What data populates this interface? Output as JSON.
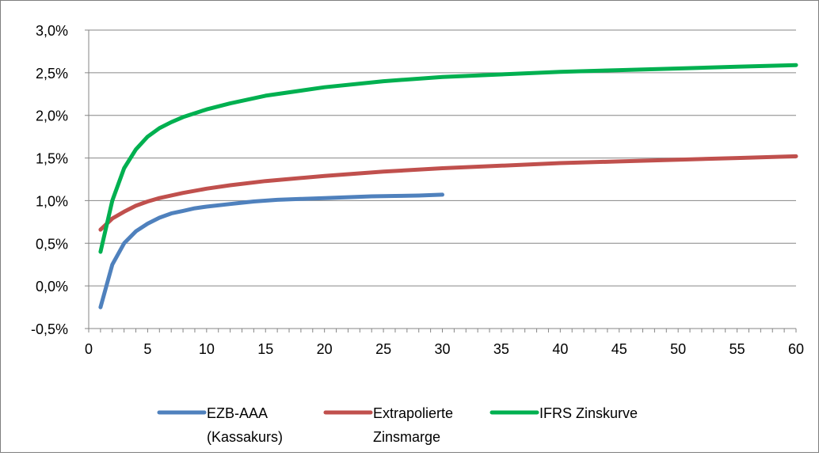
{
  "chart_data": {
    "type": "line",
    "title": "",
    "xlabel": "",
    "ylabel": "",
    "xlim": [
      0,
      60
    ],
    "ylim": [
      -0.5,
      3.0
    ],
    "x_ticks": [
      0,
      5,
      10,
      15,
      20,
      25,
      30,
      35,
      40,
      45,
      50,
      55,
      60
    ],
    "x_tick_labels": [
      "0",
      "5",
      "10",
      "15",
      "20",
      "25",
      "30",
      "35",
      "40",
      "45",
      "50",
      "55",
      "60"
    ],
    "y_ticks": [
      -0.5,
      0.0,
      0.5,
      1.0,
      1.5,
      2.0,
      2.5,
      3.0
    ],
    "y_tick_labels": [
      "-0,5%",
      "0,0%",
      "0,5%",
      "1,0%",
      "1,5%",
      "2,0%",
      "2,5%",
      "3,0%"
    ],
    "grid": "horizontal",
    "x_minor_ticks": true,
    "legend": "bottom",
    "series": [
      {
        "name": "EZB-AAA (Kassakurs)",
        "legend_lines": [
          "EZB-AAA",
          "(Kassakurs)"
        ],
        "color": "#4f81bd",
        "x": [
          1,
          2,
          3,
          4,
          5,
          6,
          7,
          8,
          9,
          10,
          12,
          14,
          16,
          18,
          20,
          22,
          24,
          26,
          28,
          30
        ],
        "y": [
          -0.25,
          0.25,
          0.5,
          0.64,
          0.73,
          0.8,
          0.85,
          0.88,
          0.91,
          0.93,
          0.96,
          0.99,
          1.01,
          1.02,
          1.03,
          1.04,
          1.05,
          1.055,
          1.06,
          1.07
        ]
      },
      {
        "name": "Extrapolierte Zinsmarge",
        "legend_lines": [
          "Extrapolierte",
          "Zinsmarge"
        ],
        "color": "#c0504d",
        "x": [
          1,
          2,
          3,
          4,
          5,
          6,
          8,
          10,
          12,
          15,
          20,
          25,
          30,
          35,
          40,
          45,
          50,
          55,
          60
        ],
        "y": [
          0.66,
          0.79,
          0.87,
          0.94,
          0.99,
          1.03,
          1.09,
          1.14,
          1.18,
          1.23,
          1.29,
          1.34,
          1.38,
          1.41,
          1.44,
          1.46,
          1.48,
          1.5,
          1.52
        ]
      },
      {
        "name": "IFRS Zinskurve",
        "legend_lines": [
          "IFRS Zinskurve"
        ],
        "color": "#00b050",
        "x": [
          1,
          2,
          3,
          4,
          5,
          6,
          7,
          8,
          10,
          12,
          15,
          20,
          25,
          30,
          35,
          40,
          45,
          50,
          55,
          60
        ],
        "y": [
          0.4,
          1.0,
          1.38,
          1.6,
          1.75,
          1.85,
          1.92,
          1.98,
          2.07,
          2.14,
          2.23,
          2.33,
          2.4,
          2.45,
          2.48,
          2.51,
          2.53,
          2.55,
          2.57,
          2.59
        ]
      }
    ]
  }
}
